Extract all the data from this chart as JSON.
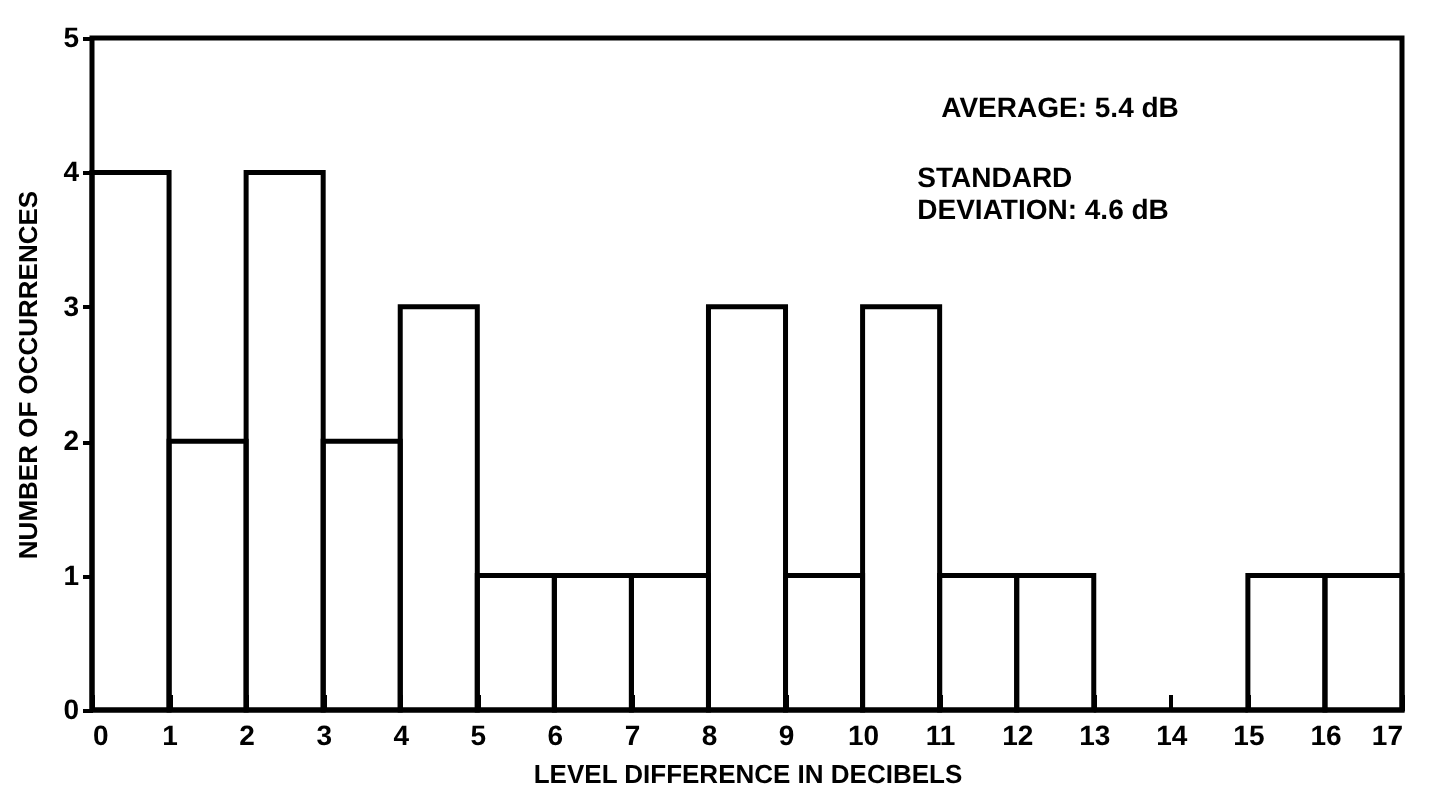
{
  "chart_data": {
    "type": "histogram",
    "xlabel": "LEVEL DIFFERENCE IN DECIBELS",
    "ylabel": "NUMBER OF OCCURRENCES",
    "bins": [
      0,
      1,
      2,
      3,
      4,
      5,
      6,
      7,
      8,
      9,
      10,
      11,
      12,
      13,
      14,
      15,
      16,
      17
    ],
    "values": [
      4,
      2,
      4,
      2,
      3,
      1,
      1,
      1,
      3,
      1,
      3,
      1,
      1,
      0,
      0,
      1,
      1
    ],
    "color": "#000000",
    "xlim": [
      0,
      17
    ],
    "xticks": [
      0,
      1,
      2,
      3,
      4,
      5,
      6,
      7,
      8,
      9,
      10,
      11,
      12,
      13,
      14,
      15,
      16,
      17
    ],
    "ylim": [
      0,
      5
    ],
    "yticks": [
      0,
      1,
      2,
      3,
      4,
      5
    ],
    "annotations": [
      "AVERAGE: 5.4 dB",
      "STANDARD\nDEVIATION: 4.6 dB"
    ],
    "grid": false
  }
}
